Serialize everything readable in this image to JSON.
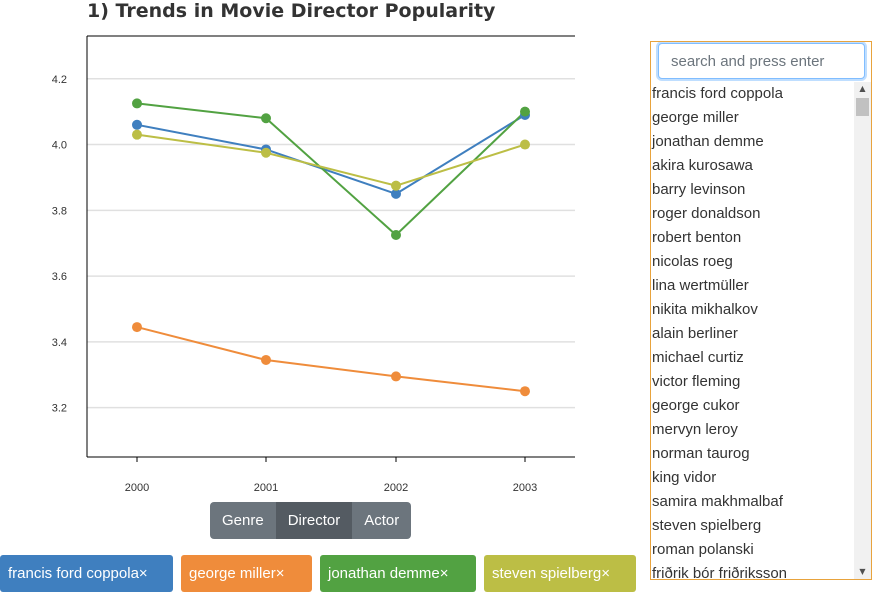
{
  "title": "1) Trends in Movie Director Popularity",
  "chart_data": {
    "type": "line",
    "x": [
      "2000",
      "2001",
      "2002",
      "2003"
    ],
    "ylim": [
      3.05,
      4.33
    ],
    "yticks": [
      "3.2",
      "3.4",
      "3.6",
      "3.8",
      "4.0",
      "4.2"
    ],
    "grid": true,
    "series": [
      {
        "color": "#3f7fbf",
        "values": [
          4.06,
          3.985,
          3.85,
          4.09
        ]
      },
      {
        "color": "#ef8c3b",
        "values": [
          3.445,
          3.345,
          3.295,
          3.25
        ]
      },
      {
        "color": "#52a242",
        "values": [
          4.125,
          4.08,
          3.725,
          4.1
        ]
      },
      {
        "color": "#bcbe45",
        "values": [
          4.03,
          3.975,
          3.875,
          4.0
        ]
      }
    ]
  },
  "toggle": {
    "options": [
      "Genre",
      "Director",
      "Actor"
    ],
    "active": "Director"
  },
  "selected": [
    {
      "label": "francis ford coppola×",
      "color": "#3f7fbf"
    },
    {
      "label": "george miller×",
      "color": "#ef8c3b"
    },
    {
      "label": "jonathan demme×",
      "color": "#52a242"
    },
    {
      "label": "steven spielberg×",
      "color": "#bcbe45"
    }
  ],
  "search": {
    "placeholder": "search and press enter",
    "value": ""
  },
  "directors": [
    "francis ford coppola",
    "george miller",
    "jonathan demme",
    "akira kurosawa",
    "barry levinson",
    "roger donaldson",
    "robert benton",
    "nicolas roeg",
    "lina wertmüller",
    "nikita mikhalkov",
    "alain berliner",
    "michael curtiz",
    "victor fleming",
    "george cukor",
    "mervyn leroy",
    "norman taurog",
    "king vidor",
    "samira makhmalbaf",
    "steven spielberg",
    "roman polanski",
    "friðrik þór friðriksson"
  ]
}
